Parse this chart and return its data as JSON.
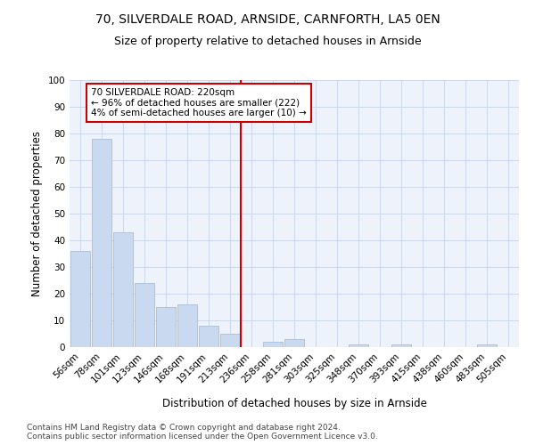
{
  "title1": "70, SILVERDALE ROAD, ARNSIDE, CARNFORTH, LA5 0EN",
  "title2": "Size of property relative to detached houses in Arnside",
  "xlabel": "Distribution of detached houses by size in Arnside",
  "ylabel": "Number of detached properties",
  "categories": [
    "56sqm",
    "78sqm",
    "101sqm",
    "123sqm",
    "146sqm",
    "168sqm",
    "191sqm",
    "213sqm",
    "236sqm",
    "258sqm",
    "281sqm",
    "303sqm",
    "325sqm",
    "348sqm",
    "370sqm",
    "393sqm",
    "415sqm",
    "438sqm",
    "460sqm",
    "483sqm",
    "505sqm"
  ],
  "values": [
    36,
    78,
    43,
    24,
    15,
    16,
    8,
    5,
    0,
    2,
    3,
    0,
    0,
    1,
    0,
    1,
    0,
    0,
    0,
    1,
    0
  ],
  "bar_color": "#c9d9f0",
  "bar_edge_color": "#aabdd8",
  "grid_color": "#c8d4e8",
  "background_color": "#eef2fb",
  "vline_x": 7.5,
  "vline_color": "#cc0000",
  "annotation_text": "70 SILVERDALE ROAD: 220sqm\n← 96% of detached houses are smaller (222)\n4% of semi-detached houses are larger (10) →",
  "annotation_box_color": "#cc0000",
  "ylim": [
    0,
    100
  ],
  "yticks": [
    0,
    10,
    20,
    30,
    40,
    50,
    60,
    70,
    80,
    90,
    100
  ],
  "footnote": "Contains HM Land Registry data © Crown copyright and database right 2024.\nContains public sector information licensed under the Open Government Licence v3.0.",
  "title1_fontsize": 10,
  "title2_fontsize": 9,
  "axis_fontsize": 8.5,
  "tick_fontsize": 7.5,
  "footnote_fontsize": 6.5,
  "ann_fontsize": 7.5
}
